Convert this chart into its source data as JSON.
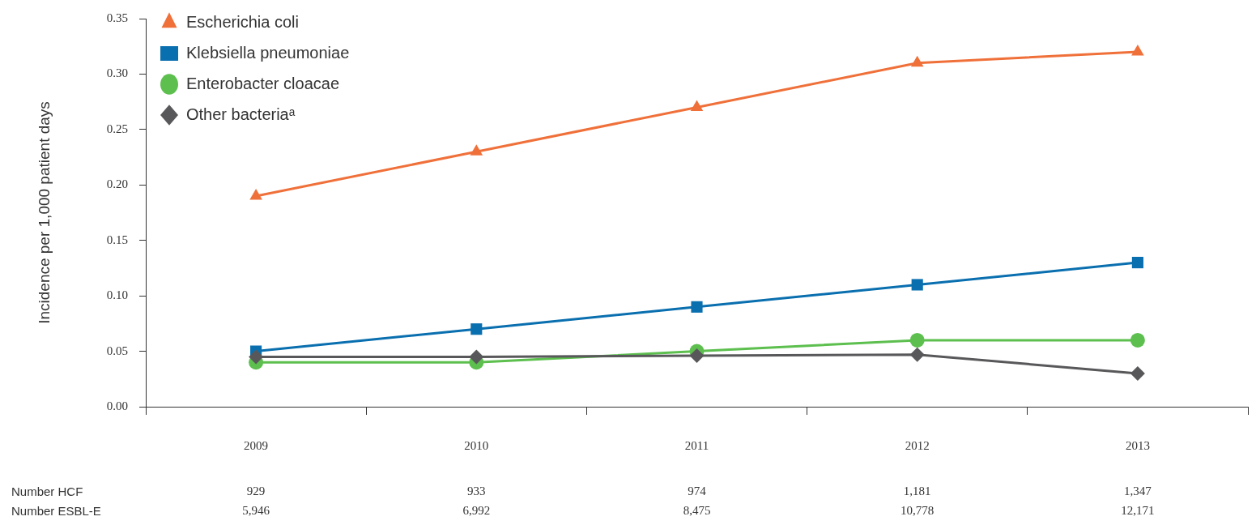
{
  "chart_data": {
    "type": "line",
    "ylabel": "Incidence per 1,000 patient days",
    "categories": [
      "2009",
      "2010",
      "2011",
      "2012",
      "2013"
    ],
    "series": [
      {
        "name": "Escherichia coli",
        "color": "#f0703a",
        "marker": "triangle",
        "values": [
          0.19,
          0.23,
          0.27,
          0.31,
          0.32
        ]
      },
      {
        "name": "Klebsiella pneumoniae",
        "color": "#0a6faf",
        "marker": "square",
        "values": [
          0.05,
          0.07,
          0.09,
          0.11,
          0.13
        ]
      },
      {
        "name": "Enterobacter cloacae",
        "color": "#5cbf4e",
        "marker": "circle",
        "values": [
          0.04,
          0.04,
          0.05,
          0.06,
          0.06
        ]
      },
      {
        "name": "Other bacteriaᵃ",
        "color": "#58585a",
        "marker": "diamond",
        "values": [
          0.045,
          0.045,
          0.046,
          0.047,
          0.03
        ]
      }
    ],
    "ylim": [
      0,
      0.35
    ],
    "yticks": [
      {
        "value": 0,
        "label": "0.00"
      },
      {
        "value": 0.05,
        "label": "0.05"
      },
      {
        "value": 0.1,
        "label": "0.10"
      },
      {
        "value": 0.15,
        "label": "0.15"
      },
      {
        "value": 0.2,
        "label": "0.20"
      },
      {
        "value": 0.25,
        "label": "0.25"
      },
      {
        "value": 0.3,
        "label": "0.30"
      },
      {
        "value": 0.35,
        "label": "0.35"
      }
    ],
    "grid": false,
    "legend": "top left",
    "annotations": [
      "Number HCF",
      "929",
      "933",
      "974",
      "1,181",
      "1,347",
      "Number ESBL-E",
      "5,946",
      "6,992",
      "8,475",
      "10,778",
      "12,171"
    ]
  }
}
